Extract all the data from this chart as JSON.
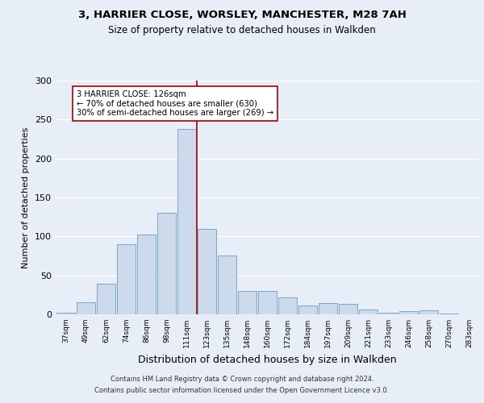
{
  "title_line1": "3, HARRIER CLOSE, WORSLEY, MANCHESTER, M28 7AH",
  "title_line2": "Size of property relative to detached houses in Walkden",
  "xlabel": "Distribution of detached houses by size in Walkden",
  "ylabel": "Number of detached properties",
  "bar_labels": [
    "37sqm",
    "49sqm",
    "62sqm",
    "74sqm",
    "86sqm",
    "98sqm",
    "111sqm",
    "123sqm",
    "135sqm",
    "148sqm",
    "160sqm",
    "172sqm",
    "184sqm",
    "197sqm",
    "209sqm",
    "221sqm",
    "233sqm",
    "246sqm",
    "258sqm",
    "270sqm",
    "283sqm"
  ],
  "bar_values": [
    2,
    16,
    39,
    90,
    102,
    130,
    238,
    110,
    76,
    30,
    30,
    22,
    11,
    15,
    13,
    6,
    2,
    4,
    5,
    1,
    0
  ],
  "bar_color": "#ccdaeb",
  "bar_edge_color": "#6a9ec0",
  "vline_index": 6.5,
  "vline_color": "#aa0000",
  "annotation_text": "3 HARRIER CLOSE: 126sqm\n← 70% of detached houses are smaller (630)\n30% of semi-detached houses are larger (269) →",
  "annotation_box_color": "white",
  "annotation_box_edge": "#aa0000",
  "ylim": [
    0,
    300
  ],
  "yticks": [
    0,
    50,
    100,
    150,
    200,
    250,
    300
  ],
  "footer_line1": "Contains HM Land Registry data © Crown copyright and database right 2024.",
  "footer_line2": "Contains public sector information licensed under the Open Government Licence v3.0.",
  "bg_color": "#e8eef8",
  "plot_bg_color": "#e8eef8",
  "title1_fontsize": 9.5,
  "title2_fontsize": 8.5,
  "ylabel_fontsize": 8,
  "xlabel_fontsize": 9,
  "ytick_fontsize": 8,
  "xtick_fontsize": 6.5,
  "annot_fontsize": 7.2,
  "footer_fontsize": 6
}
